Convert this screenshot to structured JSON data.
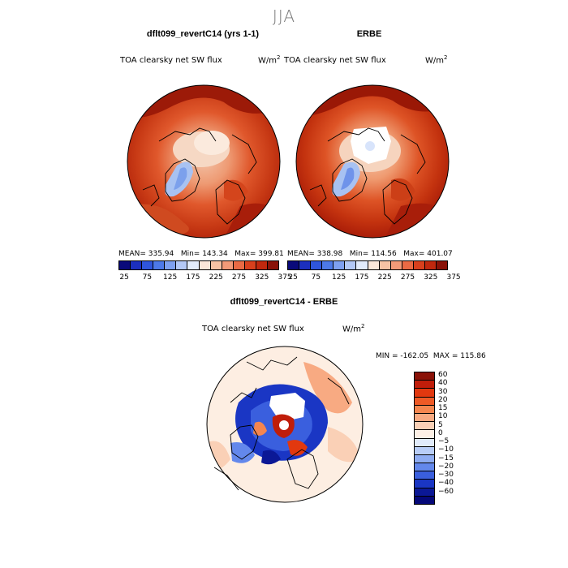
{
  "figure": {
    "season": "JJA"
  },
  "panels": {
    "model": {
      "title": "dflt099_revertC14 (yrs 1-1)",
      "variable": "TOA clearsky net SW flux",
      "units_base": "W/m",
      "units_exp": "2",
      "stats_line": "MEAN= 335.94   Min= 143.34   Max= 399.81"
    },
    "obs": {
      "title": "ERBE",
      "variable": "TOA clearsky net SW flux",
      "units_base": "W/m",
      "units_exp": "2",
      "stats_line": "MEAN= 338.98   Min= 114.56   Max= 401.07"
    },
    "diff": {
      "title": "dflt099_revertC14 - ERBE",
      "variable": "TOA clearsky net SW flux",
      "units_base": "W/m",
      "units_exp": "2",
      "minmax_line": "MIN = -162.05  MAX = 115.86"
    }
  },
  "colorbar_abs": {
    "colors": [
      "#0a0a7a",
      "#1c2fbe",
      "#2f55dc",
      "#4d79e8",
      "#7ea0f0",
      "#b3c8f6",
      "#e2ebfb",
      "#fbe7d9",
      "#f7c2a4",
      "#f29a78",
      "#ea6a44",
      "#d8401d",
      "#c0280e",
      "#8a1208"
    ],
    "tick_labels": [
      "25",
      "75",
      "125",
      "175",
      "225",
      "275",
      "325",
      "375"
    ]
  },
  "colorbar_diff": {
    "colors": [
      "#8a1208",
      "#c01d0a",
      "#e2380f",
      "#ef5a26",
      "#f5864f",
      "#f8aa82",
      "#fad0b6",
      "#fdf0e6",
      "#e1ebfb",
      "#b8cdf7",
      "#8eacf2",
      "#6388ec",
      "#3a5fde",
      "#1a36c4",
      "#0b1896",
      "#050878"
    ],
    "tick_labels": [
      "60",
      "40",
      "30",
      "20",
      "15",
      "10",
      "5",
      "0",
      "−5",
      "−10",
      "−15",
      "−20",
      "−30",
      "−40",
      "−60"
    ]
  },
  "chart_data": [
    {
      "type": "heatmap",
      "projection": "north polar stereographic",
      "title": "dflt099_revertC14 (yrs 1-1)",
      "variable": "TOA clearsky net SW flux",
      "units": "W/m2",
      "stats": {
        "mean": 335.94,
        "min": 143.34,
        "max": 399.81
      },
      "color_levels": [
        25,
        50,
        75,
        100,
        125,
        150,
        175,
        200,
        225,
        250,
        275,
        300,
        325,
        350,
        375
      ]
    },
    {
      "type": "heatmap",
      "projection": "north polar stereographic",
      "title": "ERBE",
      "variable": "TOA clearsky net SW flux",
      "units": "W/m2",
      "stats": {
        "mean": 338.98,
        "min": 114.56,
        "max": 401.07
      },
      "color_levels": [
        25,
        50,
        75,
        100,
        125,
        150,
        175,
        200,
        225,
        250,
        275,
        300,
        325,
        350,
        375
      ]
    },
    {
      "type": "heatmap",
      "projection": "north polar stereographic",
      "title": "dflt099_revertC14 - ERBE",
      "variable": "TOA clearsky net SW flux",
      "units": "W/m2",
      "stats": {
        "min": -162.05,
        "max": 115.86
      },
      "color_levels": [
        -60,
        -40,
        -30,
        -20,
        -15,
        -10,
        -5,
        0,
        5,
        10,
        15,
        20,
        30,
        40,
        60
      ]
    }
  ]
}
